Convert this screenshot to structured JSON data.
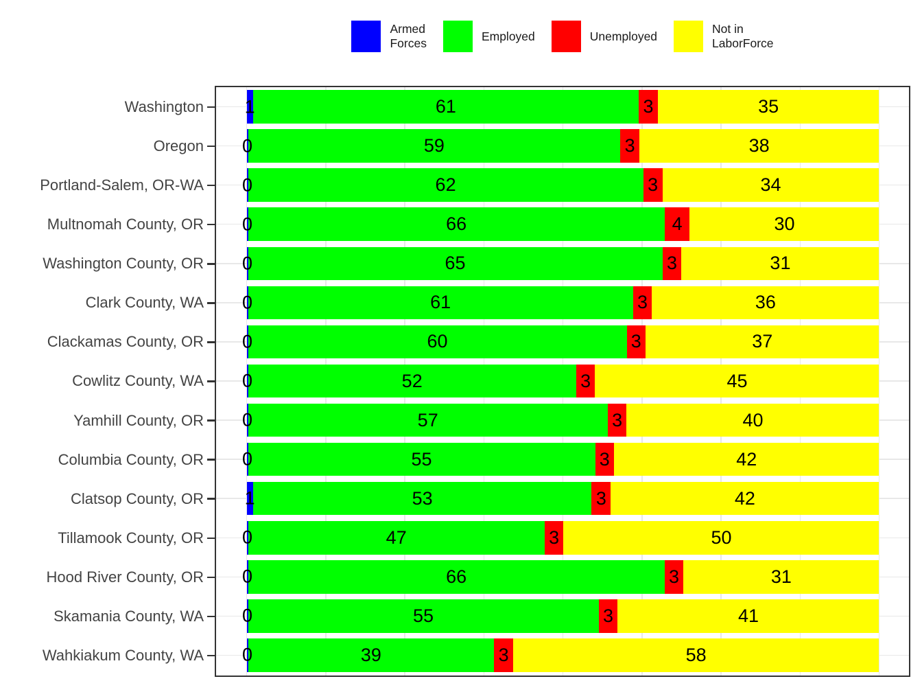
{
  "legend": {
    "items": [
      {
        "label": "Armed\nForces",
        "color": "#0000FF"
      },
      {
        "label": "Employed",
        "color": "#00FF00"
      },
      {
        "label": "Unemployed",
        "color": "#FF0000"
      },
      {
        "label": "Not in\nLaborForce",
        "color": "#FFFF00"
      }
    ]
  },
  "chart_data": {
    "type": "bar",
    "orientation": "horizontal",
    "stacked": true,
    "units": "percent of population",
    "legend_position": "top-center",
    "grid": "light gray; vertical lines every 12.5 units, horizontal line at each category",
    "xlim": [
      -5,
      105
    ],
    "bar_value_labels": "shown on each segment",
    "categories": [
      "Washington",
      "Oregon",
      "Portland-Salem, OR-WA",
      "Multnomah County, OR",
      "Washington County, OR",
      "Clark County, WA",
      "Clackamas County, OR",
      "Cowlitz County, WA",
      "Yamhill County, OR",
      "Columbia County, OR",
      "Clatsop County, OR",
      "Tillamook County, OR",
      "Hood River County, OR",
      "Skamania County, WA",
      "Wahkiakum County, WA"
    ],
    "series": [
      {
        "name": "Armed Forces",
        "color": "#0000FF",
        "values": [
          1,
          0,
          0,
          0,
          0,
          0,
          0,
          0,
          0,
          0,
          1,
          0,
          0,
          0,
          0
        ]
      },
      {
        "name": "Employed",
        "color": "#00FF00",
        "values": [
          61,
          59,
          62,
          66,
          65,
          61,
          60,
          52,
          57,
          55,
          53,
          47,
          66,
          55,
          39
        ]
      },
      {
        "name": "Unemployed",
        "color": "#FF0000",
        "values": [
          3,
          3,
          3,
          4,
          3,
          3,
          3,
          3,
          3,
          3,
          3,
          3,
          3,
          3,
          3
        ]
      },
      {
        "name": "Not in LaborForce",
        "color": "#FFFF00",
        "values": [
          35,
          38,
          34,
          30,
          31,
          36,
          37,
          45,
          40,
          42,
          42,
          50,
          31,
          41,
          58
        ]
      }
    ]
  },
  "colors": {
    "background": "#FFFFFF",
    "panel_border": "#333333",
    "gridline": "#E8E8E8",
    "axis_text": "#434343",
    "tick": "#333333",
    "value_label": "#000000"
  }
}
